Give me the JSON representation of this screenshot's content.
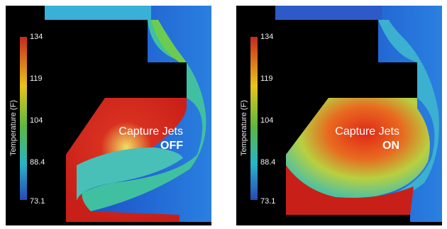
{
  "colorbar": {
    "title": "Temperature (F)",
    "ticks": [
      "134",
      "119",
      "104",
      "88.4",
      "73.1"
    ],
    "colors": [
      "#c8281e",
      "#e8c418",
      "#5ab840",
      "#28b4c8",
      "#2848b8"
    ]
  },
  "panels": [
    {
      "label": "Capture Jets",
      "state": "OFF"
    },
    {
      "label": "Capture Jets",
      "state": "ON"
    }
  ]
}
